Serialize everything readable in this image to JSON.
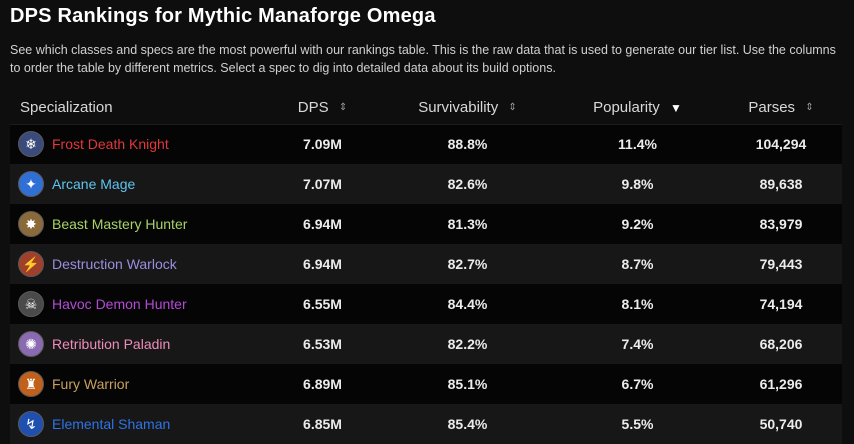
{
  "page": {
    "title": "DPS Rankings for Mythic Manaforge Omega",
    "description": "See which classes and specs are the most powerful with our rankings table. This is the raw data that is used to generate our tier list. Use the columns to order the table by different metrics. Select a spec to dig into detailed data about its build options."
  },
  "table": {
    "headers": {
      "spec": "Specialization",
      "dps": "DPS",
      "survivability": "Survivability",
      "popularity": "Popularity",
      "parses": "Parses"
    },
    "sort_icons": {
      "inactive": "⇕",
      "active": "▼"
    },
    "rows": [
      {
        "name": "Frost Death Knight",
        "color": "#e0383c",
        "icon": "frost-death-knight-icon",
        "glyph": "❄",
        "icon_bg": "#3a4a7a",
        "dps": "7.09M",
        "survivability": "88.8%",
        "popularity": "11.4%",
        "parses": "104,294"
      },
      {
        "name": "Arcane Mage",
        "color": "#5fc4ee",
        "icon": "arcane-mage-icon",
        "glyph": "✦",
        "icon_bg": "#2f6fd6",
        "dps": "7.07M",
        "survivability": "82.6%",
        "popularity": "9.8%",
        "parses": "89,638"
      },
      {
        "name": "Beast Mastery Hunter",
        "color": "#a8d468",
        "icon": "beast-mastery-hunter-icon",
        "glyph": "✸",
        "icon_bg": "#8a6a3a",
        "dps": "6.94M",
        "survivability": "81.3%",
        "popularity": "9.2%",
        "parses": "83,979"
      },
      {
        "name": "Destruction Warlock",
        "color": "#9a8ee0",
        "icon": "destruction-warlock-icon",
        "glyph": "⚡",
        "icon_bg": "#a0402a",
        "dps": "6.94M",
        "survivability": "82.7%",
        "popularity": "8.7%",
        "parses": "79,443"
      },
      {
        "name": "Havoc Demon Hunter",
        "color": "#b54ad6",
        "icon": "havoc-demon-hunter-icon",
        "glyph": "☠",
        "icon_bg": "#4a4a4a",
        "dps": "6.55M",
        "survivability": "84.4%",
        "popularity": "8.1%",
        "parses": "74,194"
      },
      {
        "name": "Retribution Paladin",
        "color": "#f08cba",
        "icon": "retribution-paladin-icon",
        "glyph": "✺",
        "icon_bg": "#8a6ab0",
        "dps": "6.53M",
        "survivability": "82.2%",
        "popularity": "7.4%",
        "parses": "68,206"
      },
      {
        "name": "Fury Warrior",
        "color": "#c8a060",
        "icon": "fury-warrior-icon",
        "glyph": "♜",
        "icon_bg": "#c0601a",
        "dps": "6.89M",
        "survivability": "85.1%",
        "popularity": "6.7%",
        "parses": "61,296"
      },
      {
        "name": "Elemental Shaman",
        "color": "#2f73e6",
        "icon": "elemental-shaman-icon",
        "glyph": "↯",
        "icon_bg": "#1f50b0",
        "dps": "6.85M",
        "survivability": "85.4%",
        "popularity": "5.5%",
        "parses": "50,740"
      }
    ]
  }
}
